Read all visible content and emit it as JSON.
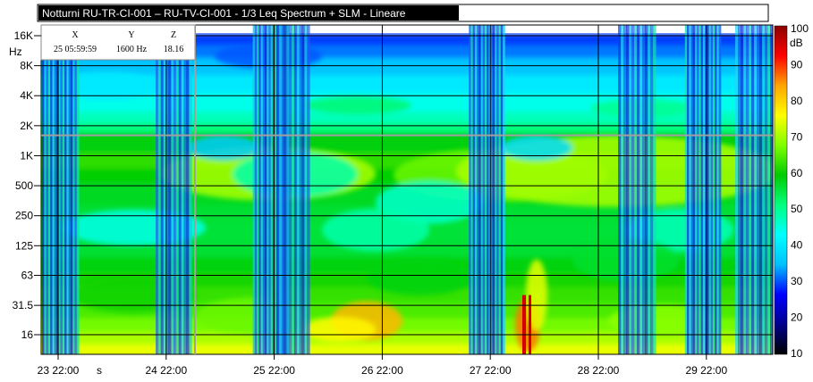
{
  "title": "Notturni RU-TR-CI-001 – RU-TV-CI-001 - 1/3 Leq Spectrum + SLM - Lineare",
  "cursor_readout": {
    "headers": [
      "X",
      "Y",
      "Z"
    ],
    "values": [
      "25 05:59:59",
      "1600 Hz",
      "18.16"
    ]
  },
  "chart_data": {
    "type": "heatmap",
    "title": "Notturni RU-TR-CI-001 – RU-TV-CI-001 - 1/3 Leq Spectrum + SLM - Lineare",
    "y_unit": "Hz",
    "x_unit": "s",
    "y_scale": "log",
    "x_ticks": [
      "23 22:00",
      "24 22:00",
      "25 22:00",
      "26 22:00",
      "27 22:00",
      "28 22:00",
      "29 22:00"
    ],
    "y_ticks": [
      "16K",
      "8K",
      "4K",
      "2K",
      "1K",
      "500",
      "250",
      "125",
      "63",
      "31.5",
      "16"
    ],
    "y_tick_hz": [
      16000,
      8000,
      4000,
      2000,
      1000,
      500,
      250,
      125,
      63,
      31.5,
      16
    ],
    "colorbar": {
      "unit": "dB",
      "min": 10,
      "max": 100,
      "ticks": [
        "100",
        "90",
        "80",
        "70",
        "60",
        "50",
        "40",
        "30",
        "20",
        "10"
      ],
      "colors": [
        "#000000",
        "#00008b",
        "#0000ff",
        "#00bfff",
        "#00ffff",
        "#00ff7f",
        "#00cc00",
        "#7fff00",
        "#ffff00",
        "#ffa500",
        "#ff0000",
        "#8b0000"
      ]
    },
    "cursor": {
      "x": "25 05:59:59",
      "y_hz": 1600,
      "z_db": 18.16
    },
    "gaps": [
      {
        "from": "23 22:00",
        "to": "24 22:00"
      },
      {
        "from": "25 22:00",
        "to": "26 22:00"
      },
      {
        "from": "27 22:00",
        "to": "28 22:00"
      },
      {
        "from": "29 22:00",
        "to": "29 23:59"
      }
    ]
  }
}
